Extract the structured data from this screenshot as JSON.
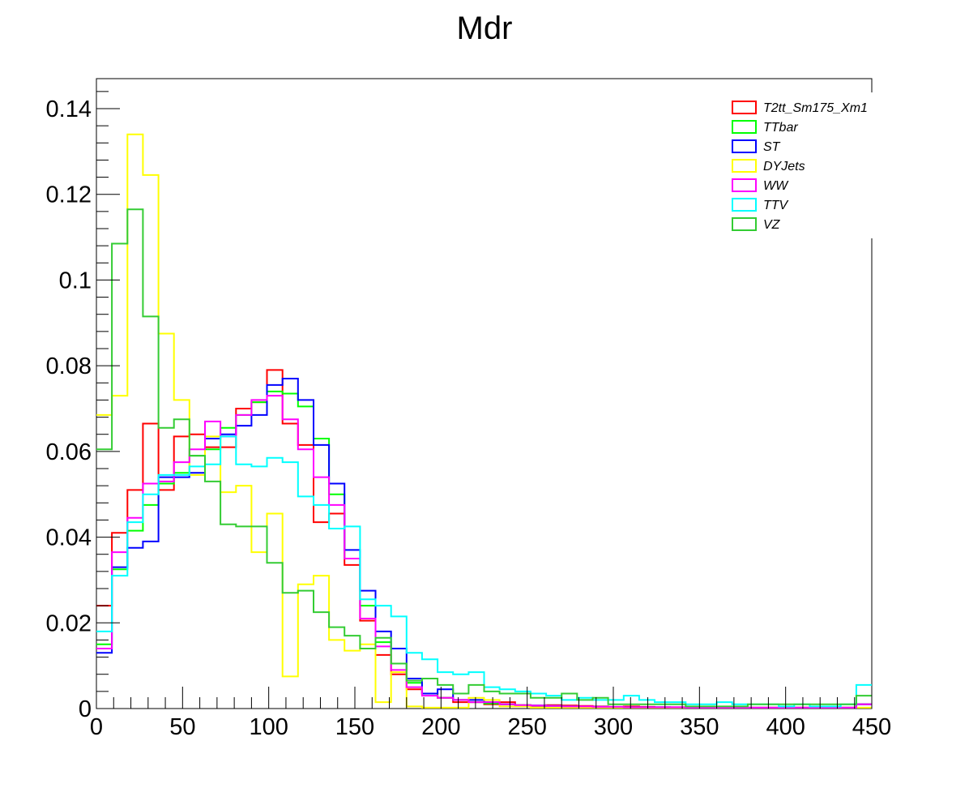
{
  "chart_data": {
    "type": "histogram",
    "title": "Mdr",
    "xlabel": "",
    "ylabel": "",
    "xlim": [
      0,
      450
    ],
    "ylim": [
      0,
      0.147
    ],
    "bin_width": 9,
    "x_tick_labels": [
      "0",
      "50",
      "100",
      "150",
      "200",
      "250",
      "300",
      "350",
      "400",
      "450"
    ],
    "y_tick_labels": [
      "0",
      "0.02",
      "0.04",
      "0.06",
      "0.08",
      "0.1",
      "0.12",
      "0.14"
    ],
    "grid": false,
    "legend_position": "top-right",
    "series": [
      {
        "name": "T2tt_Sm175_Xm1",
        "color": "#ff0000",
        "values": [
          0.024,
          0.041,
          0.051,
          0.0665,
          0.051,
          0.0635,
          0.064,
          0.061,
          0.061,
          0.07,
          0.0715,
          0.079,
          0.0665,
          0.0615,
          0.0435,
          0.0455,
          0.0335,
          0.0205,
          0.0125,
          0.008,
          0.0045,
          0.0035,
          0.0025,
          0.0015,
          0.0015,
          0.001,
          0.0015,
          0.0008,
          0.0006,
          0.0008,
          0.0007,
          0.0006,
          0.0005,
          0.0004,
          0.0005,
          0.0004,
          0.0003,
          0.0003,
          0.0003,
          0.0003,
          0.0002,
          0.0002,
          0.0002,
          0.0002,
          0.0002,
          0.0002,
          0.0002,
          0.0002,
          0.0002,
          0.001
        ]
      },
      {
        "name": "TTbar",
        "color": "#00ff00",
        "values": [
          0.015,
          0.0325,
          0.0415,
          0.0475,
          0.0525,
          0.055,
          0.059,
          0.0605,
          0.0655,
          0.0685,
          0.0715,
          0.074,
          0.0735,
          0.0705,
          0.063,
          0.05,
          0.035,
          0.024,
          0.0155,
          0.0105,
          0.006,
          0.0035,
          0.0025,
          0.002,
          0.0015,
          0.0012,
          0.001,
          0.0008,
          0.0007,
          0.0006,
          0.0005,
          0.0004,
          0.0004,
          0.0003,
          0.0003,
          0.0003,
          0.0003,
          0.0002,
          0.0002,
          0.0002,
          0.0002,
          0.0002,
          0.0002,
          0.0002,
          0.0002,
          0.0002,
          0.0002,
          0.0002,
          0.0002,
          0.001
        ]
      },
      {
        "name": "ST",
        "color": "#0000ff",
        "values": [
          0.013,
          0.033,
          0.0375,
          0.039,
          0.054,
          0.054,
          0.055,
          0.063,
          0.064,
          0.066,
          0.0685,
          0.0755,
          0.077,
          0.072,
          0.0615,
          0.0525,
          0.037,
          0.0275,
          0.018,
          0.014,
          0.007,
          0.0035,
          0.0045,
          0.002,
          0.002,
          0.0015,
          0.001,
          0.0007,
          0.0007,
          0.0006,
          0.0005,
          0.0004,
          0.0004,
          0.0003,
          0.0003,
          0.0003,
          0.0003,
          0.0002,
          0.0002,
          0.0002,
          0.0002,
          0.0002,
          0.0002,
          0.0002,
          0.0002,
          0.0002,
          0.0002,
          0.0002,
          0.0002,
          0.001
        ]
      },
      {
        "name": "DYJets",
        "color": "#ffff00",
        "values": [
          0.0685,
          0.073,
          0.134,
          0.1245,
          0.0875,
          0.072,
          0.0545,
          0.0635,
          0.0505,
          0.052,
          0.0365,
          0.0455,
          0.0075,
          0.029,
          0.031,
          0.016,
          0.0135,
          0.015,
          0.0015,
          0.0085,
          0.0005,
          0.0002,
          0.0002,
          0.0002,
          0.0025,
          0.002,
          0.0005,
          0.0005,
          0.0002,
          0.0002,
          0.0002,
          0.0002,
          0.0002,
          0.0002,
          0.0002,
          0.0002,
          0.0002,
          0.0002,
          0.0002,
          0.0002,
          0.0002,
          0.0002,
          0.0002,
          0.0002,
          0.0002,
          0.0002,
          0.0002,
          0.0002,
          0.0002,
          0.0002
        ]
      },
      {
        "name": "WW",
        "color": "#ff00ff",
        "values": [
          0.014,
          0.0365,
          0.0445,
          0.0525,
          0.053,
          0.0575,
          0.0605,
          0.067,
          0.0635,
          0.0685,
          0.072,
          0.073,
          0.0675,
          0.0605,
          0.054,
          0.0475,
          0.035,
          0.021,
          0.0145,
          0.009,
          0.005,
          0.003,
          0.0025,
          0.002,
          0.0015,
          0.0015,
          0.001,
          0.0008,
          0.0007,
          0.0006,
          0.0005,
          0.0005,
          0.0004,
          0.0004,
          0.0003,
          0.0003,
          0.0003,
          0.0003,
          0.0002,
          0.0002,
          0.0002,
          0.0002,
          0.0002,
          0.0002,
          0.0002,
          0.0002,
          0.0002,
          0.0002,
          0.0002,
          0.001
        ]
      },
      {
        "name": "TTV",
        "color": "#00ffff",
        "values": [
          0.018,
          0.031,
          0.0435,
          0.05,
          0.0545,
          0.0545,
          0.0565,
          0.057,
          0.0635,
          0.057,
          0.0565,
          0.0585,
          0.0575,
          0.0495,
          0.0475,
          0.042,
          0.0425,
          0.0255,
          0.024,
          0.0215,
          0.013,
          0.0115,
          0.0085,
          0.008,
          0.0085,
          0.005,
          0.0045,
          0.004,
          0.0035,
          0.003,
          0.002,
          0.0025,
          0.002,
          0.002,
          0.003,
          0.002,
          0.0015,
          0.0015,
          0.001,
          0.001,
          0.0015,
          0.001,
          0.001,
          0.001,
          0.0005,
          0.001,
          0.0005,
          0.0005,
          0.001,
          0.0055
        ]
      },
      {
        "name": "VZ",
        "color": "#33cc33",
        "values": [
          0.0605,
          0.1085,
          0.1165,
          0.0915,
          0.0655,
          0.0675,
          0.059,
          0.053,
          0.043,
          0.0425,
          0.0425,
          0.034,
          0.027,
          0.0275,
          0.0225,
          0.019,
          0.017,
          0.014,
          0.0165,
          0.0105,
          0.0065,
          0.007,
          0.0055,
          0.0035,
          0.0055,
          0.004,
          0.0035,
          0.0035,
          0.0025,
          0.0025,
          0.0035,
          0.002,
          0.0025,
          0.001,
          0.001,
          0.001,
          0.001,
          0.001,
          0.0005,
          0.0005,
          0.0005,
          0.0005,
          0.001,
          0.001,
          0.001,
          0.001,
          0.001,
          0.001,
          0.001,
          0.003
        ]
      }
    ]
  }
}
